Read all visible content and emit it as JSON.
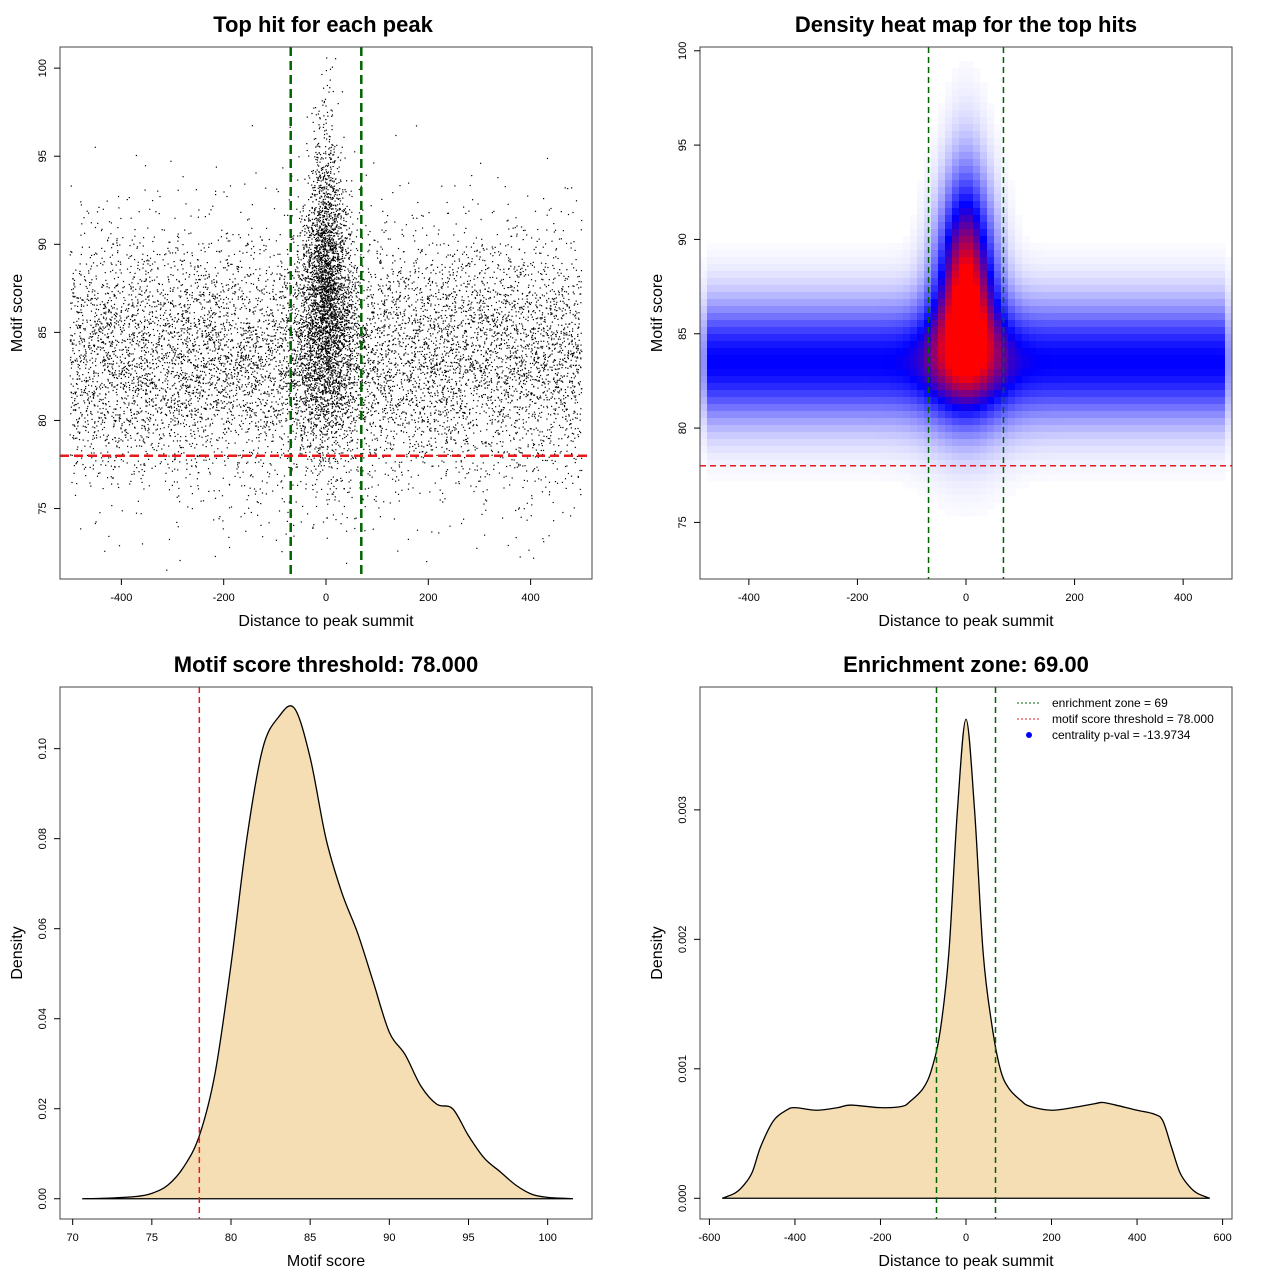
{
  "chart_data": [
    {
      "id": "scatter",
      "type": "scatter",
      "title": "Top hit for each peak",
      "xlabel": "Distance to peak summit",
      "ylabel": "Motif score",
      "xlim": [
        -520,
        520
      ],
      "ylim": [
        71,
        101.2
      ],
      "xticks": [
        -400,
        -200,
        0,
        200,
        400
      ],
      "yticks": [
        75,
        80,
        85,
        90,
        95,
        100
      ],
      "vlines": [
        -69,
        69
      ],
      "hline": 78,
      "point_model": {
        "background": {
          "n": 9000,
          "x_range": [
            -500,
            500
          ],
          "y_mean": 83.5,
          "y_sd": 3.5
        },
        "central": {
          "n": 3500,
          "x_mean": 0,
          "x_sd": 30,
          "y_mean": 87,
          "y_sd": 4.2
        }
      },
      "colors": {
        "points": "#000000",
        "vline": "#006400",
        "hline": "#e41a1c"
      }
    },
    {
      "id": "heatmap",
      "type": "heatmap",
      "title": "Density heat map for the top hits",
      "xlabel": "Distance to peak summit",
      "ylabel": "Motif score",
      "xlim": [
        -490,
        490
      ],
      "ylim": [
        72,
        100.2
      ],
      "xticks": [
        -400,
        -200,
        0,
        200,
        400
      ],
      "yticks": [
        75,
        80,
        85,
        90,
        95,
        100
      ],
      "vlines": [
        -69,
        69
      ],
      "hline": 78,
      "density_model": {
        "background": {
          "y_mean": 83.5,
          "y_sd": 2.2,
          "weight": 0.55
        },
        "central": {
          "x_sd": 40,
          "y_mean": 87.5,
          "y_sd": 4.0,
          "weight": 1.0
        }
      },
      "colors": {
        "low": "#ffffff",
        "mid": "#0000ff",
        "high": "#ff0000",
        "vline": "#006400",
        "hline": "#e41a1c"
      }
    },
    {
      "id": "score-density",
      "type": "area",
      "title": "Motif score threshold: 78.000",
      "xlabel": "Motif score",
      "ylabel": "Density",
      "xlim": [
        69.2,
        102.8
      ],
      "ylim": [
        -0.0045,
        0.1137
      ],
      "xticks": [
        70,
        75,
        80,
        85,
        90,
        95,
        100
      ],
      "yticks": [
        0.0,
        0.02,
        0.04,
        0.06,
        0.08,
        0.1
      ],
      "ytick_labels": [
        "0.00",
        "0.02",
        "0.04",
        "0.06",
        "0.08",
        "0.10"
      ],
      "vline": 78,
      "x": [
        70.6,
        72,
        74,
        75,
        76,
        77,
        78,
        79,
        80,
        81,
        82,
        83,
        84,
        85,
        86,
        87,
        88,
        89,
        90,
        91,
        92,
        93,
        94,
        95,
        96,
        97,
        98,
        99,
        100,
        101,
        101.6
      ],
      "y": [
        0.0,
        0.0001,
        0.0005,
        0.0012,
        0.003,
        0.007,
        0.014,
        0.028,
        0.052,
        0.08,
        0.1,
        0.107,
        0.109,
        0.098,
        0.08,
        0.068,
        0.059,
        0.048,
        0.037,
        0.032,
        0.025,
        0.021,
        0.02,
        0.014,
        0.009,
        0.006,
        0.003,
        0.001,
        0.0003,
        0.0001,
        0.0
      ],
      "colors": {
        "fill": "#f5deb3",
        "line": "#000000",
        "vline": "#e41a1c"
      }
    },
    {
      "id": "distance-density",
      "type": "area",
      "title": "Enrichment zone: 69.00",
      "xlabel": "Distance to peak summit",
      "ylabel": "Density",
      "xlim": [
        -622,
        622
      ],
      "ylim": [
        -0.00016,
        0.003949
      ],
      "xticks": [
        -600,
        -400,
        -200,
        0,
        200,
        400,
        600
      ],
      "yticks": [
        0.0,
        0.001,
        0.002,
        0.003
      ],
      "ytick_labels": [
        "0.000",
        "0.001",
        "0.002",
        "0.003"
      ],
      "vlines": [
        -69,
        69
      ],
      "x": [
        -570,
        -540,
        -520,
        -500,
        -480,
        -450,
        -420,
        -400,
        -350,
        -300,
        -270,
        -200,
        -150,
        -130,
        -100,
        -80,
        -60,
        -40,
        -20,
        0,
        20,
        40,
        60,
        80,
        100,
        130,
        150,
        200,
        250,
        300,
        320,
        350,
        400,
        440,
        460,
        480,
        500,
        520,
        540,
        570
      ],
      "y": [
        0.0,
        4e-05,
        0.0001,
        0.0002,
        0.0004,
        0.0006,
        0.00068,
        0.0007,
        0.00068,
        0.0007,
        0.00072,
        0.0007,
        0.00071,
        0.00075,
        0.00085,
        0.001,
        0.0013,
        0.0019,
        0.003,
        0.0037,
        0.003,
        0.0019,
        0.00135,
        0.001,
        0.00085,
        0.00075,
        0.00071,
        0.00068,
        0.0007,
        0.00073,
        0.00074,
        0.00072,
        0.00068,
        0.00065,
        0.0006,
        0.0004,
        0.0002,
        0.0001,
        4e-05,
        0.0
      ],
      "legend": [
        {
          "label": "enrichment zone = 69",
          "marker": "dotted-line",
          "color": "#006400"
        },
        {
          "label": "motif score threshold = 78.000",
          "marker": "dotted-line",
          "color": "#e41a1c"
        },
        {
          "label": "centrality p-val = -13.9734",
          "marker": "dot",
          "color": "#0000ff"
        }
      ],
      "legend_position": "top-right",
      "colors": {
        "fill": "#f5deb3",
        "line": "#000000",
        "vline": "#006400"
      }
    }
  ]
}
